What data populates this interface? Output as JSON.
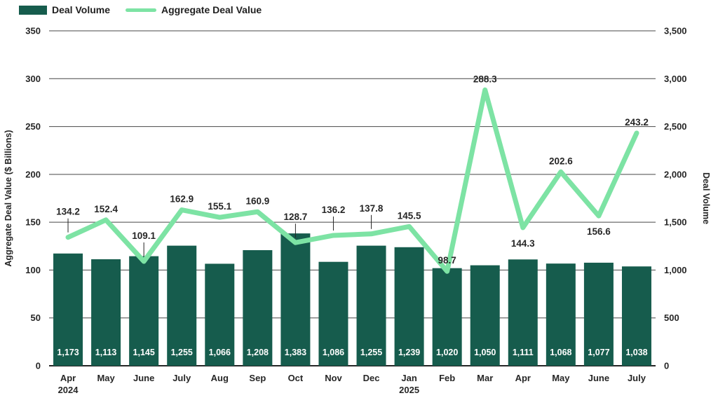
{
  "legend": {
    "items": [
      {
        "label": "Deal Volume",
        "type": "bar"
      },
      {
        "label": "Aggregate Deal Value",
        "type": "line"
      }
    ]
  },
  "left_axis": {
    "title": "Aggregate Deal Value ($ Billions)",
    "min": 0,
    "max": 350,
    "ticks": [
      "350",
      "300",
      "250",
      "200",
      "150",
      "100",
      "50",
      "0"
    ]
  },
  "right_axis": {
    "title": "Deal Volume",
    "min": 0,
    "max": 3500,
    "ticks": [
      "3,500",
      "3,000",
      "2,500",
      "2,000",
      "1,500",
      "1,000",
      "500",
      "0"
    ]
  },
  "theme": {
    "bar_color": "#165C4D",
    "line_color": "#7DE3A4",
    "gridline_color": "#474747",
    "axis_line_color": "#262626",
    "tick_text_color": "#262626",
    "data_label_color": "#262626",
    "bar_label_color": "#FFFFFF",
    "background": "#FFFFFF"
  },
  "chart_data": {
    "type": "bar",
    "subtype": "bar+line combo, dual axis",
    "title": "",
    "xlabel": "",
    "grid": "horizontal",
    "legend_position": "top-left",
    "categories": [
      [
        "Apr",
        "2024"
      ],
      [
        "May"
      ],
      [
        "June"
      ],
      [
        "July"
      ],
      [
        "Aug"
      ],
      [
        "Sep"
      ],
      [
        "Oct"
      ],
      [
        "Nov"
      ],
      [
        "Dec"
      ],
      [
        "Jan",
        "2025"
      ],
      [
        "Feb"
      ],
      [
        "Mar"
      ],
      [
        "Apr"
      ],
      [
        "May"
      ],
      [
        "June"
      ],
      [
        "July"
      ]
    ],
    "series": [
      {
        "name": "Deal Volume",
        "type": "bar",
        "axis": "right",
        "ylim": [
          0,
          3500
        ],
        "values": [
          1173,
          1113,
          1145,
          1255,
          1066,
          1208,
          1383,
          1086,
          1255,
          1239,
          1020,
          1050,
          1111,
          1068,
          1077,
          1038
        ],
        "labels": [
          "1,173",
          "1,113",
          "1,145",
          "1,255",
          "1,066",
          "1,208",
          "1,383",
          "1,086",
          "1,255",
          "1,239",
          "1,020",
          "1,050",
          "1,111",
          "1,068",
          "1,077",
          "1,038"
        ]
      },
      {
        "name": "Aggregate Deal Value",
        "type": "line",
        "axis": "left",
        "ylim": [
          0,
          350
        ],
        "values": [
          134.2,
          152.4,
          109.1,
          162.9,
          155.1,
          160.9,
          128.7,
          136.2,
          137.8,
          145.5,
          98.7,
          288.3,
          144.3,
          202.6,
          156.6,
          243.2
        ],
        "labels": [
          "134.2",
          "152.4",
          "109.1",
          "162.9",
          "155.1",
          "160.9",
          "128.7",
          "136.2",
          "137.8",
          "145.5",
          "98.7",
          "288.3",
          "144.3",
          "202.6",
          "156.6",
          "243.2"
        ],
        "label_layout": [
          "high",
          "above",
          "high",
          "above",
          "above",
          "above",
          "high",
          "high",
          "high",
          "above",
          "above",
          "above",
          "below",
          "above",
          "below",
          "above"
        ]
      }
    ]
  }
}
